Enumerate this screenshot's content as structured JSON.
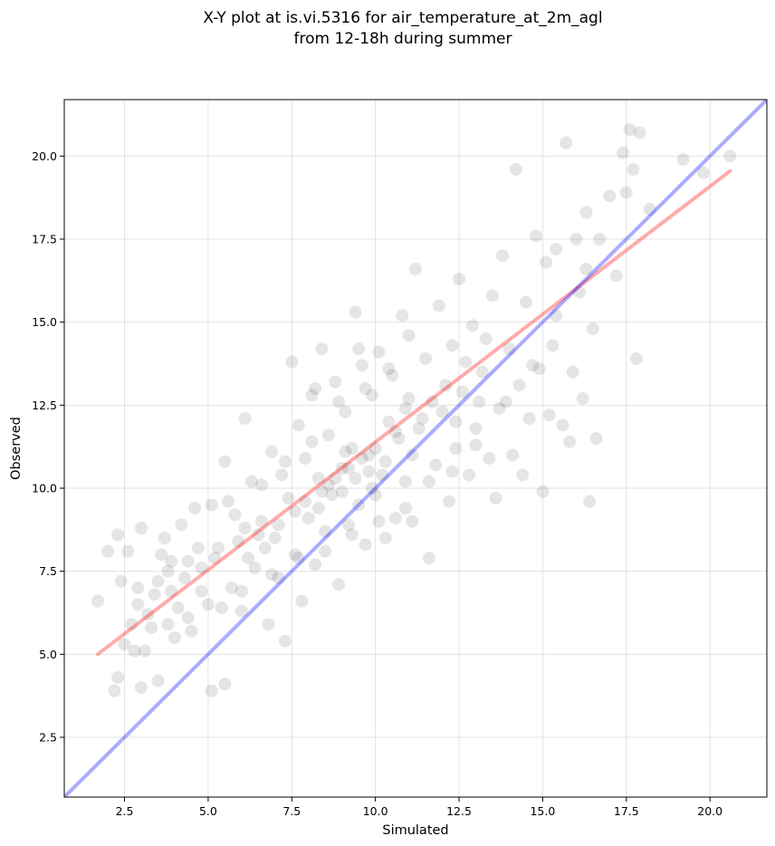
{
  "chart_data": {
    "type": "scatter",
    "title_lines": [
      "X-Y plot at is.vi.5316 for air_temperature_at_2m_agl",
      "from 12-18h during summer"
    ],
    "xlabel": "Simulated",
    "ylabel": "Observed",
    "xlim": [
      0.7,
      21.7
    ],
    "ylim": [
      0.7,
      21.7
    ],
    "x_ticks": [
      "2.5",
      "5.0",
      "7.5",
      "10.0",
      "12.5",
      "15.0",
      "17.5",
      "20.0"
    ],
    "y_ticks": [
      "2.5",
      "5.0",
      "7.5",
      "10.0",
      "12.5",
      "15.0",
      "17.5",
      "20.0"
    ],
    "x_tick_values": [
      2.5,
      5.0,
      7.5,
      10.0,
      12.5,
      15.0,
      17.5,
      20.0
    ],
    "y_tick_values": [
      2.5,
      5.0,
      7.5,
      10.0,
      12.5,
      15.0,
      17.5,
      20.0
    ],
    "grid": true,
    "series": [
      {
        "kind": "scatter",
        "color": "#000000",
        "points": [
          [
            1.7,
            6.6
          ],
          [
            2.0,
            8.1
          ],
          [
            2.2,
            3.9
          ],
          [
            2.3,
            4.3
          ],
          [
            2.3,
            8.6
          ],
          [
            2.4,
            7.2
          ],
          [
            2.6,
            8.1
          ],
          [
            2.7,
            5.9
          ],
          [
            2.8,
            5.1
          ],
          [
            2.9,
            6.5
          ],
          [
            3.0,
            4.0
          ],
          [
            3.0,
            8.8
          ],
          [
            3.2,
            6.2
          ],
          [
            3.3,
            5.8
          ],
          [
            3.5,
            7.2
          ],
          [
            3.5,
            4.2
          ],
          [
            3.7,
            8.5
          ],
          [
            3.8,
            7.5
          ],
          [
            3.9,
            6.9
          ],
          [
            4.0,
            5.5
          ],
          [
            4.1,
            6.4
          ],
          [
            4.2,
            8.9
          ],
          [
            4.4,
            7.8
          ],
          [
            4.5,
            5.7
          ],
          [
            4.6,
            9.4
          ],
          [
            4.8,
            6.9
          ],
          [
            5.0,
            6.5
          ],
          [
            5.1,
            3.9
          ],
          [
            5.1,
            9.5
          ],
          [
            5.3,
            8.2
          ],
          [
            5.5,
            4.1
          ],
          [
            5.5,
            10.8
          ],
          [
            5.7,
            7.0
          ],
          [
            5.8,
            9.2
          ],
          [
            6.0,
            6.3
          ],
          [
            6.1,
            8.8
          ],
          [
            6.1,
            12.1
          ],
          [
            6.3,
            10.2
          ],
          [
            6.4,
            7.6
          ],
          [
            6.6,
            9.0
          ],
          [
            6.8,
            5.9
          ],
          [
            6.9,
            11.1
          ],
          [
            7.0,
            8.5
          ],
          [
            7.1,
            7.3
          ],
          [
            7.2,
            10.4
          ],
          [
            7.3,
            5.4
          ],
          [
            7.4,
            9.7
          ],
          [
            7.5,
            13.8
          ],
          [
            7.6,
            8.0
          ],
          [
            7.7,
            11.9
          ],
          [
            7.8,
            6.6
          ],
          [
            7.9,
            10.9
          ],
          [
            8.0,
            9.1
          ],
          [
            8.1,
            12.8
          ],
          [
            8.2,
            7.7
          ],
          [
            8.3,
            10.3
          ],
          [
            8.4,
            14.2
          ],
          [
            8.5,
            8.7
          ],
          [
            8.6,
            11.6
          ],
          [
            8.7,
            9.8
          ],
          [
            8.8,
            13.2
          ],
          [
            8.9,
            7.1
          ],
          [
            9.0,
            10.6
          ],
          [
            9.1,
            12.3
          ],
          [
            9.2,
            8.9
          ],
          [
            9.3,
            11.2
          ],
          [
            9.4,
            15.3
          ],
          [
            9.5,
            9.5
          ],
          [
            9.6,
            13.7
          ],
          [
            9.7,
            8.3
          ],
          [
            9.8,
            11.0
          ],
          [
            9.9,
            12.8
          ],
          [
            10.0,
            9.8
          ],
          [
            10.1,
            14.1
          ],
          [
            10.2,
            10.4
          ],
          [
            10.3,
            8.5
          ],
          [
            10.4,
            12.0
          ],
          [
            10.5,
            13.4
          ],
          [
            10.6,
            9.1
          ],
          [
            10.7,
            11.5
          ],
          [
            10.8,
            15.2
          ],
          [
            10.9,
            10.2
          ],
          [
            11.0,
            12.7
          ],
          [
            11.1,
            9.0
          ],
          [
            11.2,
            16.6
          ],
          [
            11.3,
            11.8
          ],
          [
            11.5,
            13.9
          ],
          [
            11.6,
            7.9
          ],
          [
            11.8,
            10.7
          ],
          [
            11.9,
            15.5
          ],
          [
            12.0,
            12.3
          ],
          [
            12.2,
            9.6
          ],
          [
            12.3,
            14.3
          ],
          [
            12.4,
            11.2
          ],
          [
            12.5,
            16.3
          ],
          [
            12.6,
            12.9
          ],
          [
            12.8,
            10.4
          ],
          [
            12.9,
            14.9
          ],
          [
            13.0,
            11.8
          ],
          [
            13.2,
            13.5
          ],
          [
            13.4,
            10.9
          ],
          [
            13.5,
            15.8
          ],
          [
            13.6,
            9.7
          ],
          [
            13.7,
            12.4
          ],
          [
            13.8,
            17.0
          ],
          [
            14.0,
            14.2
          ],
          [
            14.1,
            11.0
          ],
          [
            14.2,
            19.6
          ],
          [
            14.3,
            13.1
          ],
          [
            14.4,
            10.4
          ],
          [
            14.5,
            15.6
          ],
          [
            14.6,
            12.1
          ],
          [
            14.8,
            17.6
          ],
          [
            14.9,
            13.6
          ],
          [
            15.0,
            9.9
          ],
          [
            15.1,
            16.8
          ],
          [
            15.2,
            12.2
          ],
          [
            15.3,
            14.3
          ],
          [
            15.4,
            17.2
          ],
          [
            15.6,
            11.9
          ],
          [
            15.7,
            20.4
          ],
          [
            15.8,
            11.4
          ],
          [
            15.9,
            13.5
          ],
          [
            16.0,
            17.5
          ],
          [
            16.1,
            15.9
          ],
          [
            16.2,
            12.7
          ],
          [
            16.3,
            18.3
          ],
          [
            16.4,
            9.6
          ],
          [
            16.5,
            14.8
          ],
          [
            16.6,
            11.5
          ],
          [
            16.7,
            17.5
          ],
          [
            17.0,
            18.8
          ],
          [
            17.2,
            16.4
          ],
          [
            17.4,
            20.1
          ],
          [
            17.5,
            18.9
          ],
          [
            17.6,
            20.8
          ],
          [
            17.7,
            19.6
          ],
          [
            17.8,
            13.9
          ],
          [
            17.9,
            20.7
          ],
          [
            18.2,
            18.4
          ],
          [
            19.2,
            19.9
          ],
          [
            19.8,
            19.5
          ],
          [
            20.6,
            20.0
          ],
          [
            5.2,
            7.9
          ],
          [
            6.7,
            8.2
          ],
          [
            7.9,
            9.6
          ],
          [
            8.3,
            9.4
          ],
          [
            8.6,
            10.1
          ],
          [
            9.0,
            9.9
          ],
          [
            9.2,
            10.6
          ],
          [
            9.4,
            10.3
          ],
          [
            9.6,
            10.9
          ],
          [
            9.8,
            10.5
          ],
          [
            10.0,
            11.2
          ],
          [
            10.3,
            10.8
          ],
          [
            8.8,
            10.3
          ],
          [
            8.4,
            9.9
          ],
          [
            9.1,
            11.1
          ],
          [
            9.9,
            10.0
          ],
          [
            10.6,
            11.7
          ],
          [
            7.6,
            9.3
          ],
          [
            7.1,
            8.9
          ],
          [
            6.5,
            8.6
          ],
          [
            6.2,
            7.9
          ],
          [
            5.9,
            8.4
          ],
          [
            4.8,
            7.6
          ],
          [
            4.3,
            7.3
          ],
          [
            3.9,
            7.8
          ],
          [
            3.4,
            6.8
          ],
          [
            2.9,
            7.0
          ],
          [
            11.4,
            12.1
          ],
          [
            11.7,
            12.6
          ],
          [
            12.1,
            13.1
          ],
          [
            12.7,
            13.8
          ],
          [
            13.3,
            14.5
          ],
          [
            10.9,
            12.4
          ],
          [
            11.1,
            11.0
          ],
          [
            12.4,
            12.0
          ],
          [
            13.1,
            12.6
          ],
          [
            8.1,
            11.4
          ],
          [
            7.3,
            10.8
          ],
          [
            6.6,
            10.1
          ],
          [
            5.6,
            9.6
          ],
          [
            4.7,
            8.2
          ],
          [
            3.6,
            8.0
          ],
          [
            2.5,
            5.3
          ],
          [
            3.1,
            5.1
          ],
          [
            3.8,
            5.9
          ],
          [
            4.4,
            6.1
          ],
          [
            5.4,
            6.4
          ],
          [
            6.0,
            6.9
          ],
          [
            6.9,
            7.4
          ],
          [
            7.7,
            7.9
          ],
          [
            8.5,
            8.1
          ],
          [
            9.3,
            8.6
          ],
          [
            10.1,
            9.0
          ],
          [
            10.9,
            9.4
          ],
          [
            11.6,
            10.2
          ],
          [
            12.3,
            10.5
          ],
          [
            13.0,
            11.3
          ],
          [
            13.9,
            12.6
          ],
          [
            14.7,
            13.7
          ],
          [
            15.4,
            15.2
          ],
          [
            16.3,
            16.6
          ],
          [
            9.7,
            13.0
          ],
          [
            10.4,
            13.6
          ],
          [
            11.0,
            14.6
          ],
          [
            8.9,
            12.6
          ],
          [
            8.2,
            13.0
          ],
          [
            9.5,
            14.2
          ]
        ]
      },
      {
        "kind": "line",
        "name": "",
        "color": "#ff0000",
        "from": [
          1.7,
          5.0
        ],
        "to": [
          20.6,
          19.55
        ]
      },
      {
        "kind": "line",
        "name": "",
        "color": "#0000ff",
        "from": [
          0.7,
          0.7
        ],
        "to": [
          21.7,
          21.7
        ]
      }
    ]
  }
}
